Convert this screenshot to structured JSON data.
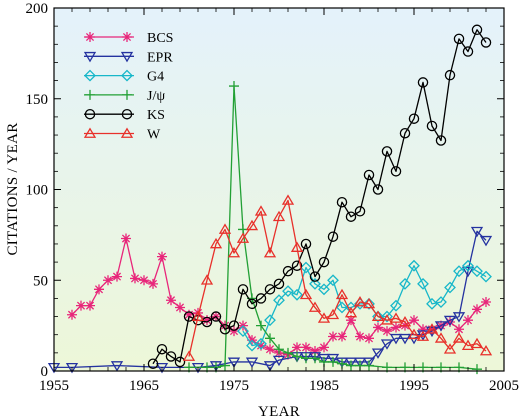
{
  "chart_data": {
    "type": "line",
    "title": "",
    "xlabel": "YEAR",
    "ylabel": "CITATIONS / YEAR",
    "xlim": [
      1955,
      2005
    ],
    "ylim": [
      0,
      200
    ],
    "xticks": [
      1955,
      1965,
      1975,
      1985,
      1995,
      2005
    ],
    "yticks": [
      0,
      50,
      100,
      150,
      200
    ],
    "grid": false,
    "legend": "top-left",
    "background": {
      "top": "#e4f2fb",
      "bottom": "#edf7d8"
    },
    "series": [
      {
        "name": "BCS",
        "marker": "asterisk",
        "color": "#e8267a",
        "x": [
          1957,
          1958,
          1959,
          1960,
          1961,
          1962,
          1963,
          1964,
          1965,
          1966,
          1967,
          1968,
          1969,
          1970,
          1971,
          1972,
          1973,
          1974,
          1975,
          1976,
          1977,
          1978,
          1979,
          1980,
          1981,
          1982,
          1983,
          1984,
          1985,
          1986,
          1987,
          1988,
          1989,
          1990,
          1991,
          1992,
          1993,
          1994,
          1995,
          1996,
          1997,
          1998,
          1999,
          2000,
          2001,
          2002,
          2003
        ],
        "y": [
          31,
          36,
          36,
          45,
          50,
          52,
          73,
          51,
          50,
          48,
          63,
          39,
          35,
          31,
          32,
          28,
          30,
          25,
          22,
          25,
          17,
          14,
          12,
          10,
          9,
          13,
          13,
          11,
          13,
          19,
          19,
          28,
          19,
          18,
          24,
          22,
          24,
          25,
          28,
          23,
          23,
          25,
          27,
          23,
          28,
          34,
          38
        ]
      },
      {
        "name": "EPR",
        "marker": "triangle-down",
        "color": "#2432a0",
        "x": [
          1955,
          1957,
          1962,
          1967,
          1971,
          1973,
          1975,
          1977,
          1979,
          1980,
          1982,
          1983,
          1984,
          1985,
          1986,
          1987,
          1988,
          1989,
          1990,
          1991,
          1992,
          1993,
          1994,
          1995,
          1996,
          1997,
          1998,
          1999,
          2000,
          2001,
          2002,
          2003
        ],
        "y": [
          2,
          2,
          3,
          2,
          2,
          3,
          5,
          5,
          3,
          6,
          8,
          8,
          8,
          7,
          7,
          5,
          5,
          5,
          5,
          10,
          15,
          18,
          18,
          18,
          20,
          22,
          25,
          28,
          30,
          55,
          77,
          72
        ]
      },
      {
        "name": "G4",
        "marker": "diamond",
        "color": "#17b7c9",
        "x": [
          1976,
          1977,
          1978,
          1979,
          1980,
          1981,
          1982,
          1983,
          1984,
          1985,
          1986,
          1987,
          1988,
          1989,
          1990,
          1991,
          1992,
          1993,
          1994,
          1995,
          1996,
          1997,
          1998,
          1999,
          2000,
          2001,
          2002,
          2003
        ],
        "y": [
          22,
          14,
          15,
          28,
          39,
          44,
          42,
          57,
          48,
          45,
          50,
          35,
          35,
          37,
          37,
          30,
          30,
          36,
          48,
          58,
          48,
          37,
          38,
          46,
          55,
          58,
          55,
          52
        ]
      },
      {
        "name": "J/ψ",
        "marker": "plus",
        "color": "#22a035",
        "x": [
          1970,
          1972,
          1973,
          1974,
          1975,
          1976,
          1977,
          1978,
          1979,
          1980,
          1981,
          1982,
          1983,
          1984,
          1985,
          1986,
          1987,
          1988,
          1989,
          1990,
          1992,
          1994,
          1996,
          1998,
          2000,
          2002
        ],
        "y": [
          2,
          2,
          2,
          3,
          157,
          78,
          40,
          25,
          18,
          12,
          10,
          8,
          7,
          7,
          5,
          5,
          4,
          3,
          3,
          3,
          2,
          2,
          2,
          2,
          2,
          1
        ]
      },
      {
        "name": "KS",
        "marker": "circle",
        "color": "#000000",
        "x": [
          1966,
          1967,
          1968,
          1969,
          1970,
          1971,
          1972,
          1973,
          1974,
          1975,
          1976,
          1977,
          1978,
          1979,
          1980,
          1981,
          1982,
          1983,
          1984,
          1985,
          1986,
          1987,
          1988,
          1989,
          1990,
          1991,
          1992,
          1993,
          1994,
          1995,
          1996,
          1997,
          1998,
          1999,
          2000,
          2001,
          2002,
          2003
        ],
        "y": [
          4,
          12,
          8,
          5,
          30,
          28,
          27,
          30,
          23,
          25,
          45,
          37,
          40,
          45,
          48,
          55,
          58,
          70,
          52,
          60,
          74,
          93,
          85,
          88,
          108,
          100,
          121,
          110,
          131,
          139,
          159,
          135,
          127,
          163,
          183,
          176,
          188,
          181
        ]
      },
      {
        "name": "W",
        "marker": "triangle-up",
        "color": "#e8302a",
        "x": [
          1970,
          1971,
          1972,
          1973,
          1974,
          1975,
          1976,
          1977,
          1978,
          1979,
          1980,
          1981,
          1982,
          1983,
          1984,
          1985,
          1986,
          1987,
          1988,
          1989,
          1990,
          1991,
          1992,
          1993,
          1994,
          1995,
          1996,
          1997,
          1998,
          1999,
          2000,
          2001,
          2002,
          2003
        ],
        "y": [
          8,
          30,
          50,
          70,
          78,
          65,
          73,
          80,
          88,
          65,
          85,
          94,
          68,
          42,
          35,
          29,
          31,
          42,
          32,
          38,
          37,
          30,
          28,
          29,
          27,
          20,
          19,
          23,
          18,
          12,
          18,
          14,
          15,
          11
        ]
      }
    ]
  }
}
